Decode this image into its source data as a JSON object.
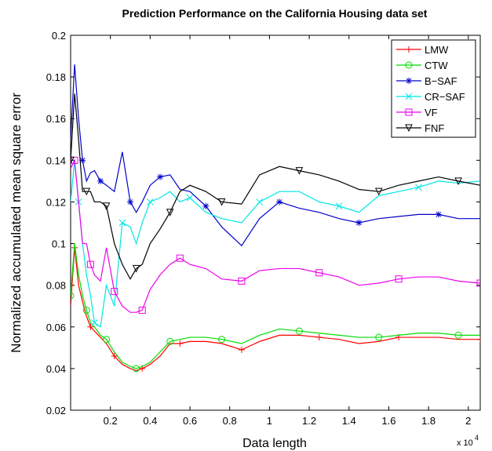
{
  "chart_data": {
    "type": "line",
    "title": "Prediction Performance on the California Housing data set",
    "xlabel": "Data length",
    "ylabel": "Normalized accumulated mean square error",
    "x_multiplier": "x 10",
    "x_exponent": "4",
    "x": [
      0,
      0.02,
      0.04,
      0.06,
      0.08,
      0.1,
      0.12,
      0.15,
      0.18,
      0.22,
      0.26,
      0.3,
      0.33,
      0.36,
      0.4,
      0.45,
      0.5,
      0.55,
      0.6,
      0.68,
      0.76,
      0.86,
      0.95,
      1.05,
      1.15,
      1.25,
      1.35,
      1.45,
      1.55,
      1.65,
      1.75,
      1.85,
      1.95,
      2.06
    ],
    "xlim": [
      0,
      2.06
    ],
    "xticks": [
      0.2,
      0.4,
      0.6,
      0.8,
      1,
      1.2,
      1.4,
      1.6,
      1.8,
      2
    ],
    "ylim": [
      0.02,
      0.2
    ],
    "yticks": [
      0.02,
      0.04,
      0.06,
      0.08,
      0.1,
      0.12,
      0.14,
      0.16,
      0.18,
      0.2
    ],
    "legend": "upper right",
    "series": [
      {
        "name": "LMW",
        "color": "#ff0000",
        "marker": "plus",
        "values": [
          0.07,
          0.098,
          0.08,
          0.072,
          0.065,
          0.06,
          0.058,
          0.055,
          0.052,
          0.046,
          0.042,
          0.04,
          0.039,
          0.04,
          0.042,
          0.046,
          0.052,
          0.052,
          0.053,
          0.053,
          0.052,
          0.049,
          0.053,
          0.056,
          0.056,
          0.055,
          0.054,
          0.052,
          0.053,
          0.055,
          0.055,
          0.055,
          0.054,
          0.054
        ]
      },
      {
        "name": "CTW",
        "color": "#00dd00",
        "marker": "circle",
        "values": [
          0.075,
          0.1,
          0.085,
          0.075,
          0.068,
          0.062,
          0.06,
          0.056,
          0.054,
          0.048,
          0.043,
          0.041,
          0.04,
          0.041,
          0.043,
          0.048,
          0.053,
          0.054,
          0.055,
          0.055,
          0.054,
          0.052,
          0.056,
          0.059,
          0.058,
          0.057,
          0.056,
          0.055,
          0.055,
          0.056,
          0.057,
          0.057,
          0.056,
          0.056
        ]
      },
      {
        "name": "B−SAF",
        "color": "#0000cc",
        "marker": "star",
        "values": [
          0.15,
          0.186,
          0.16,
          0.14,
          0.13,
          0.134,
          0.135,
          0.13,
          0.128,
          0.125,
          0.144,
          0.12,
          0.115,
          0.12,
          0.128,
          0.132,
          0.133,
          0.126,
          0.125,
          0.118,
          0.108,
          0.099,
          0.112,
          0.12,
          0.117,
          0.115,
          0.112,
          0.11,
          0.112,
          0.113,
          0.114,
          0.114,
          0.112,
          0.112
        ]
      },
      {
        "name": "CR−SAF",
        "color": "#00e5e5",
        "marker": "cross",
        "values": [
          0.12,
          0.14,
          0.12,
          0.1,
          0.085,
          0.075,
          0.062,
          0.06,
          0.08,
          0.07,
          0.11,
          0.108,
          0.1,
          0.11,
          0.12,
          0.122,
          0.125,
          0.12,
          0.122,
          0.115,
          0.112,
          0.11,
          0.12,
          0.125,
          0.125,
          0.12,
          0.118,
          0.115,
          0.123,
          0.125,
          0.127,
          0.13,
          0.129,
          0.13
        ]
      },
      {
        "name": "VF",
        "color": "#ee00ee",
        "marker": "square",
        "values": [
          0.136,
          0.14,
          0.12,
          0.1,
          0.1,
          0.09,
          0.085,
          0.082,
          0.098,
          0.077,
          0.07,
          0.067,
          0.067,
          0.068,
          0.078,
          0.085,
          0.09,
          0.093,
          0.09,
          0.088,
          0.083,
          0.082,
          0.087,
          0.088,
          0.088,
          0.086,
          0.084,
          0.08,
          0.081,
          0.083,
          0.084,
          0.084,
          0.082,
          0.081
        ]
      },
      {
        "name": "FNF",
        "color": "#000000",
        "marker": "triangle-down",
        "values": [
          0.14,
          0.172,
          0.15,
          0.125,
          0.125,
          0.125,
          0.12,
          0.12,
          0.118,
          0.1,
          0.09,
          0.083,
          0.088,
          0.09,
          0.1,
          0.107,
          0.115,
          0.125,
          0.128,
          0.125,
          0.12,
          0.119,
          0.133,
          0.137,
          0.135,
          0.133,
          0.13,
          0.126,
          0.125,
          0.128,
          0.13,
          0.132,
          0.13,
          0.128
        ]
      }
    ]
  }
}
